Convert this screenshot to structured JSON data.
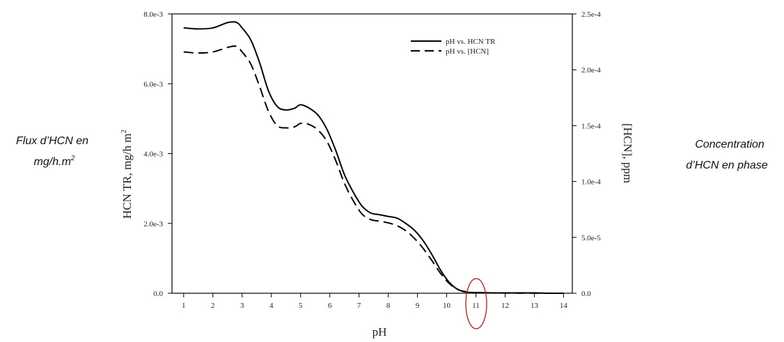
{
  "annotations": {
    "left_line1": "Flux d’HCN en",
    "left_line2_main": "mg/h.m",
    "left_line2_sup": "2",
    "right_line1": "Concentration",
    "right_line2": "d’HCN en phase"
  },
  "chart_data": {
    "type": "line",
    "title": "",
    "xlabel": "pH",
    "ylabel_main": "HCN TR, mg/h m",
    "ylabel_sup": "2",
    "y2label": "[HCN], ppm",
    "xlim": [
      0.6,
      14.3
    ],
    "ylim": [
      0,
      0.008
    ],
    "y2lim": [
      0,
      0.00025
    ],
    "x_ticks": [
      "1",
      "2",
      "3",
      "4",
      "5",
      "6",
      "7",
      "8",
      "9",
      "10",
      "11",
      "12",
      "13",
      "14"
    ],
    "y_ticks": [
      {
        "value": 0,
        "label": "0.0"
      },
      {
        "value": 0.002,
        "label": "2.0e-3"
      },
      {
        "value": 0.004,
        "label": "4.0e-3"
      },
      {
        "value": 0.006,
        "label": "6.0e-3"
      },
      {
        "value": 0.008,
        "label": "8.0e-3"
      }
    ],
    "y2_ticks": [
      {
        "value": 0,
        "label": "0.0"
      },
      {
        "value": 5e-05,
        "label": "5.0e-5"
      },
      {
        "value": 0.0001,
        "label": "1.0e-4"
      },
      {
        "value": 0.00015,
        "label": "1.5e-4"
      },
      {
        "value": 0.0002,
        "label": "2.0e-4"
      },
      {
        "value": 0.00025,
        "label": "2.5e-4"
      }
    ],
    "legend_position": "top-right",
    "highlight": {
      "x": 11,
      "color": "#c0282d"
    },
    "series": [
      {
        "name": "pH vs. HCN TR",
        "axis": "left",
        "style": "solid",
        "x": [
          1,
          1.5,
          2,
          2.5,
          2.8,
          3,
          3.3,
          3.6,
          3.9,
          4.2,
          4.5,
          4.8,
          5.0,
          5.3,
          5.6,
          5.9,
          6.2,
          6.5,
          6.8,
          7.1,
          7.4,
          7.7,
          8.0,
          8.3,
          8.6,
          8.9,
          9.2,
          9.5,
          9.8,
          10.1,
          10.4,
          10.7,
          11,
          11.5,
          12,
          12.5,
          13,
          13.5,
          14
        ],
        "values": [
          0.0076,
          0.00757,
          0.0076,
          0.00775,
          0.00776,
          0.0076,
          0.00725,
          0.0066,
          0.0058,
          0.00535,
          0.00525,
          0.0053,
          0.0054,
          0.0053,
          0.0051,
          0.0047,
          0.0041,
          0.0034,
          0.0029,
          0.0025,
          0.0023,
          0.00225,
          0.0022,
          0.00215,
          0.002,
          0.0018,
          0.0015,
          0.0011,
          0.00065,
          0.0003,
          0.0001,
          3e-05,
          2e-05,
          1e-05,
          1e-05,
          1e-05,
          1e-05,
          0.0,
          0.0
        ]
      },
      {
        "name": "pH vs. [HCN]",
        "axis": "right",
        "style": "dashed",
        "x": [
          1,
          1.5,
          2,
          2.5,
          2.8,
          3,
          3.3,
          3.6,
          3.9,
          4.2,
          4.5,
          4.8,
          5.0,
          5.3,
          5.6,
          5.9,
          6.2,
          6.5,
          6.8,
          7.1,
          7.4,
          7.7,
          8.0,
          8.3,
          8.6,
          8.9,
          9.2,
          9.5,
          9.8,
          10.1,
          10.4,
          10.7,
          11,
          11.5,
          12,
          12.5,
          13,
          13.5,
          14
        ],
        "values": [
          0.000216,
          0.000215,
          0.000216,
          0.00022,
          0.000221,
          0.000216,
          0.000205,
          0.000185,
          0.000163,
          0.00015,
          0.000148,
          0.000149,
          0.000152,
          0.000151,
          0.000146,
          0.000136,
          0.000119,
          9.85e-05,
          8.3e-05,
          7.1e-05,
          6.6e-05,
          6.45e-05,
          6.3e-05,
          6.05e-05,
          5.6e-05,
          4.9e-05,
          4e-05,
          2.9e-05,
          1.75e-05,
          8.5e-06,
          3.2e-06,
          1.2e-06,
          6e-07,
          3e-07,
          2e-07,
          1e-07,
          1e-07,
          0.0,
          0.0
        ]
      }
    ]
  }
}
